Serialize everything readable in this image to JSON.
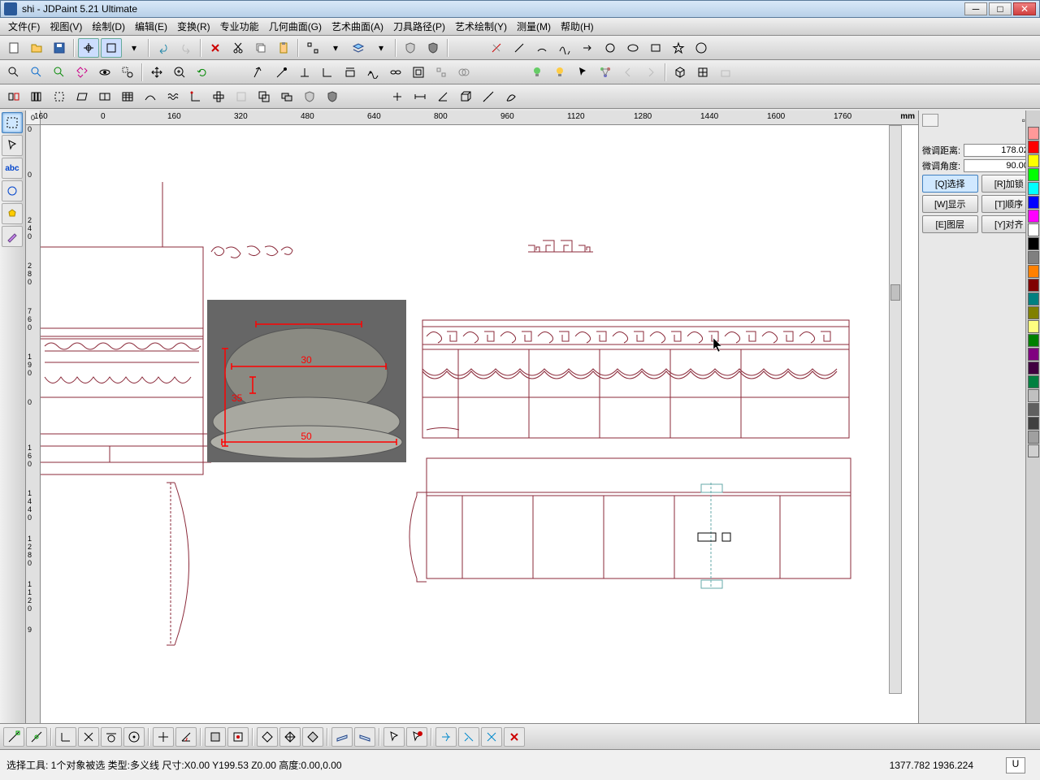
{
  "title": "shi - JDPaint 5.21 Ultimate",
  "menu": {
    "file": "文件(F)",
    "view": "视图(V)",
    "draw": "绘制(D)",
    "edit": "编辑(E)",
    "transform": "变换(R)",
    "expert": "专业功能",
    "geom": "几何曲面(G)",
    "art": "艺术曲面(A)",
    "tool": "刀具路径(P)",
    "artdraw": "艺术绘制(Y)",
    "measure": "测量(M)",
    "help": "帮助(H)"
  },
  "ruler": {
    "unit": "mm",
    "h": [
      "160",
      "0",
      "160",
      "320",
      "480",
      "640",
      "800",
      "960",
      "1120",
      "1280",
      "1440",
      "1600",
      "1760"
    ],
    "v": [
      "0",
      "0",
      "2",
      "4",
      "0",
      "2",
      "8",
      "0",
      "7",
      "6",
      "0",
      "1",
      "9",
      "0",
      "0",
      "1",
      "6",
      "0",
      "1",
      "4",
      "4",
      "0",
      "1",
      "2",
      "8",
      "0",
      "1",
      "1",
      "2",
      "0",
      "9"
    ]
  },
  "panel": {
    "distLabel": "微调距离:",
    "dist": "178.020",
    "angleLabel": "微调角度:",
    "angle": "90.000",
    "q": "[Q]选择",
    "r": "[R]加锁",
    "w": "[W]显示",
    "t": "[T]顺序",
    "e": "[E]图层",
    "y": "[Y]对齐"
  },
  "colors": [
    "#ff9999",
    "#ff0000",
    "#ffff00",
    "#00ff00",
    "#00ffff",
    "#0000ff",
    "#ff00ff",
    "#ffffff",
    "#000000",
    "#808080",
    "#ff8000",
    "#800000",
    "#008080",
    "#808000",
    "#ffff80",
    "#008000",
    "#800080",
    "#400040",
    "#008040",
    "#c0c0c0",
    "#606060",
    "#404040",
    "#a0a0a0",
    "#d0d0d0"
  ],
  "status": {
    "text": "选择工具: 1个对象被选 类型:多义线 尺寸:X0.00 Y199.53 Z0.00 高度:0.00,0.00",
    "coords": "1377.782 1936.224",
    "u": "U"
  },
  "canvas": {
    "stroke": "#8b2a3a",
    "dims": [
      "30",
      "35",
      "50"
    ]
  }
}
